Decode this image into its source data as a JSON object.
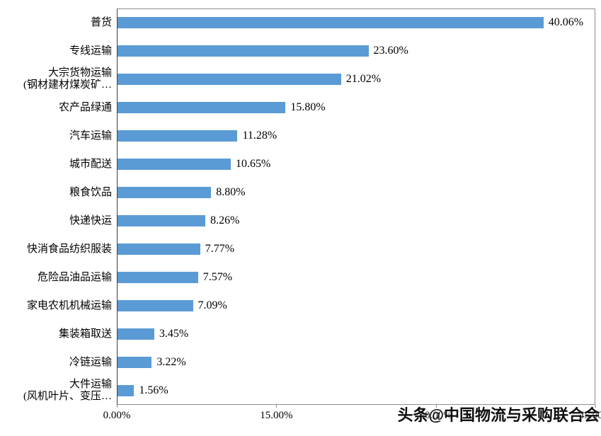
{
  "chart_data": {
    "type": "bar",
    "orientation": "horizontal",
    "title": "",
    "xlabel": "",
    "ylabel": "",
    "grid": false,
    "legend": "none",
    "bar_color": "#5B9BD5",
    "categories": [
      "普货",
      "专线运输",
      "大宗货物运输\n(钢材建材煤炭矿…",
      "农产品绿通",
      "汽车运输",
      "城市配送",
      "粮食饮品",
      "快递快运",
      "快消食品纺织服装",
      "危险品油品运输",
      "家电农机机械运输",
      "集装箱取送",
      "冷链运输",
      "大件运输\n(风机叶片、变压…"
    ],
    "values": [
      40.06,
      23.6,
      21.02,
      15.8,
      11.28,
      10.65,
      8.8,
      8.26,
      7.77,
      7.57,
      7.09,
      3.45,
      3.22,
      1.56
    ],
    "data_labels": [
      "40.06%",
      "23.60%",
      "21.02%",
      "15.80%",
      "11.28%",
      "10.65%",
      "8.80%",
      "8.26%",
      "7.77%",
      "7.57%",
      "7.09%",
      "3.45%",
      "3.22%",
      "1.56%"
    ],
    "xlim": [
      0,
      45
    ],
    "x_ticks": [
      {
        "value": 0,
        "label": "0.00%"
      },
      {
        "value": 15,
        "label": "15.00%"
      },
      {
        "value": 30,
        "label": "30.00%"
      },
      {
        "value": 45,
        "label": "45.00%"
      }
    ]
  },
  "watermark": "头条@中国物流与采购联合会"
}
